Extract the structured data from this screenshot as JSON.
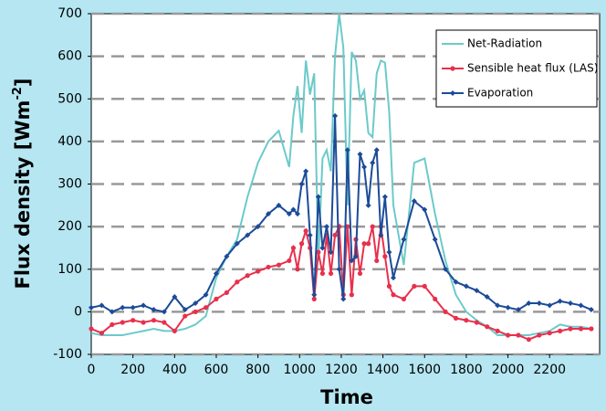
{
  "chart_data": {
    "type": "line",
    "ylabel": {
      "text": "Flux density [Wm",
      "sup": "-2",
      "end": "]"
    },
    "xlabel": "Time",
    "x": [
      0,
      50,
      100,
      150,
      200,
      250,
      300,
      350,
      400,
      450,
      500,
      550,
      600,
      650,
      700,
      750,
      800,
      850,
      900,
      950,
      970,
      990,
      1010,
      1030,
      1050,
      1070,
      1090,
      1110,
      1130,
      1150,
      1170,
      1190,
      1210,
      1230,
      1250,
      1270,
      1290,
      1310,
      1330,
      1350,
      1370,
      1390,
      1410,
      1430,
      1450,
      1500,
      1550,
      1600,
      1650,
      1700,
      1750,
      1800,
      1850,
      1900,
      1950,
      2000,
      2050,
      2100,
      2150,
      2200,
      2250,
      2300,
      2350,
      2400
    ],
    "series": [
      {
        "name": "Net-Radiation",
        "color": "#6ccaca",
        "marker": "none",
        "values": [
          -50,
          -55,
          -55,
          -55,
          -50,
          -45,
          -40,
          -45,
          -45,
          -40,
          -30,
          -10,
          80,
          130,
          170,
          270,
          350,
          400,
          425,
          340,
          460,
          530,
          420,
          590,
          510,
          560,
          120,
          360,
          380,
          330,
          600,
          700,
          620,
          250,
          610,
          590,
          500,
          520,
          420,
          410,
          560,
          590,
          585,
          470,
          250,
          110,
          350,
          360,
          230,
          120,
          40,
          0,
          -20,
          -35,
          -55,
          -55,
          -55,
          -55,
          -50,
          -45,
          -30,
          -35,
          -35,
          -40
        ]
      },
      {
        "name": "Sensible heat flux (LAS)",
        "color": "#e8304c",
        "marker": "circle",
        "values": [
          -40,
          -50,
          -30,
          -25,
          -20,
          -25,
          -20,
          -25,
          -45,
          -10,
          0,
          10,
          30,
          45,
          70,
          85,
          95,
          105,
          110,
          120,
          150,
          100,
          160,
          190,
          150,
          30,
          140,
          90,
          180,
          90,
          180,
          200,
          40,
          200,
          40,
          170,
          90,
          160,
          160,
          200,
          120,
          200,
          130,
          60,
          40,
          30,
          60,
          60,
          30,
          0,
          -15,
          -20,
          -25,
          -35,
          -45,
          -55,
          -55,
          -65,
          -55,
          -50,
          -45,
          -40,
          -40,
          -40
        ]
      },
      {
        "name": "Evaporation",
        "color": "#1c4b98",
        "marker": "diamond",
        "values": [
          10,
          15,
          0,
          10,
          10,
          15,
          5,
          0,
          35,
          5,
          20,
          40,
          90,
          130,
          160,
          180,
          200,
          230,
          250,
          230,
          240,
          230,
          300,
          330,
          180,
          40,
          270,
          150,
          200,
          140,
          460,
          100,
          30,
          380,
          120,
          130,
          370,
          340,
          250,
          350,
          380,
          180,
          270,
          140,
          80,
          170,
          260,
          240,
          170,
          100,
          70,
          60,
          50,
          35,
          15,
          10,
          5,
          20,
          20,
          15,
          25,
          20,
          15,
          5
        ]
      }
    ],
    "xlim": [
      0,
      2440
    ],
    "xticks": [
      0,
      200,
      400,
      600,
      800,
      1000,
      1200,
      1400,
      1600,
      1800,
      2000,
      2200
    ],
    "ylim": [
      -100,
      700
    ],
    "yticks": [
      -100,
      0,
      100,
      200,
      300,
      400,
      500,
      600,
      700
    ],
    "grid": true,
    "legend": "top-right"
  }
}
